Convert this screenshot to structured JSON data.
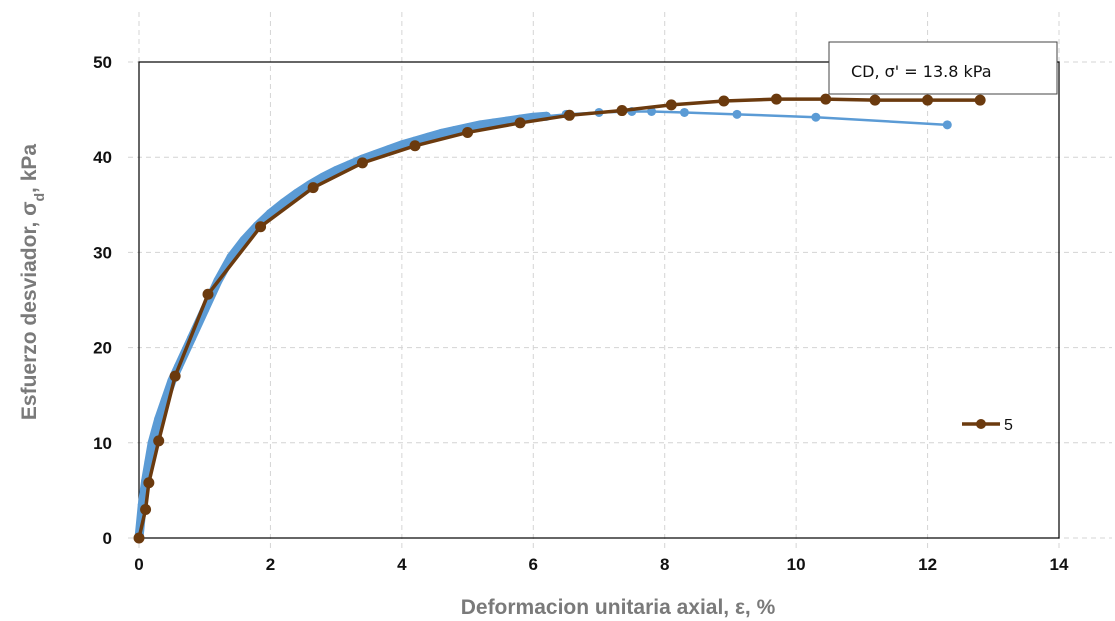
{
  "chart_data": {
    "type": "scatter",
    "xlabel": "Deformacion unitaria axial, ε, %",
    "ylabel_main": "Esfuerzo desviador, σ",
    "ylabel_sub": "d",
    "ylabel_tail": ", kPa",
    "annotation": "CD, σ' = 13.8 kPa",
    "xlim": [
      0,
      14
    ],
    "ylim": [
      0,
      50
    ],
    "xticks": [
      "0",
      "2",
      "4",
      "6",
      "8",
      "10",
      "12",
      "14"
    ],
    "yticks": [
      "0",
      "10",
      "20",
      "30",
      "40",
      "50"
    ],
    "grid": true,
    "legend_position": "right",
    "series": [
      {
        "name": "",
        "color": "#5b9bd5",
        "style": "dense-dots",
        "x": [
          0,
          0.05,
          0.1,
          0.15,
          0.2,
          0.3,
          0.4,
          0.5,
          0.6,
          0.8,
          1.0,
          1.2,
          1.4,
          1.6,
          1.8,
          2.0,
          2.2,
          2.4,
          2.6,
          2.8,
          3.0,
          3.2,
          3.4,
          3.6,
          3.8,
          4.0,
          4.2,
          4.4,
          4.6,
          4.8,
          5.0,
          5.2,
          5.4,
          5.6,
          5.8,
          6.0,
          6.2,
          6.5,
          7.0,
          7.5,
          7.8,
          8.3,
          9.1,
          10.3,
          12.3
        ],
        "y": [
          0,
          3.5,
          6,
          8,
          10,
          12.5,
          14.5,
          16.5,
          18,
          21,
          24,
          27,
          29.5,
          31.3,
          32.8,
          34.1,
          35.2,
          36.2,
          37.1,
          37.9,
          38.6,
          39.2,
          39.8,
          40.3,
          40.8,
          41.3,
          41.7,
          42.1,
          42.5,
          42.8,
          43.1,
          43.4,
          43.6,
          43.8,
          44.0,
          44.2,
          44.3,
          44.5,
          44.7,
          44.8,
          44.8,
          44.7,
          44.5,
          44.2,
          43.4
        ]
      },
      {
        "name": "5",
        "color": "#6b3a0e",
        "style": "line-markers",
        "x": [
          0,
          0.1,
          0.15,
          0.3,
          0.55,
          1.05,
          1.85,
          2.65,
          3.4,
          4.2,
          5.0,
          5.8,
          6.55,
          7.35,
          8.1,
          8.9,
          9.7,
          10.45,
          11.2,
          12.0,
          12.8
        ],
        "y": [
          0,
          3,
          5.8,
          10.2,
          17,
          25.6,
          32.7,
          36.8,
          39.4,
          41.2,
          42.6,
          43.6,
          44.4,
          44.9,
          45.5,
          45.9,
          46.1,
          46.1,
          46.0,
          46.0,
          46.0
        ]
      }
    ]
  }
}
